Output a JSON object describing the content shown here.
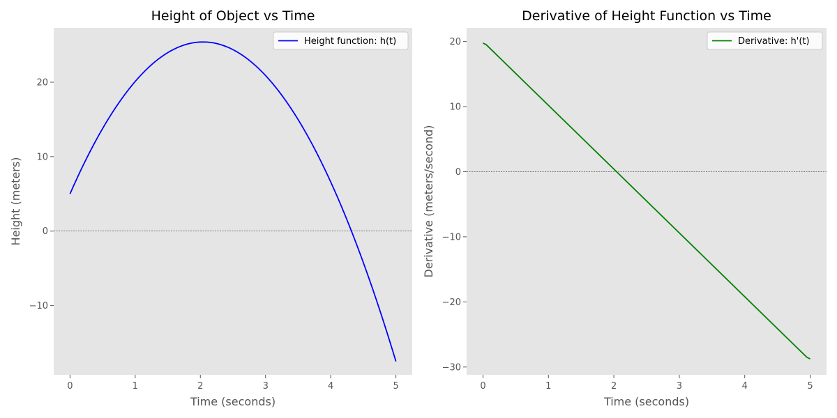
{
  "chart_data": [
    {
      "type": "line",
      "title": "Height of Object vs Time",
      "xlabel": "Time (seconds)",
      "ylabel": "Height (meters)",
      "xlim": [
        -0.25,
        5.25
      ],
      "ylim": [
        -19.3,
        27.3
      ],
      "xticks": [
        0,
        1,
        2,
        3,
        4,
        5
      ],
      "yticks": [
        -10,
        0,
        10,
        20
      ],
      "grid": false,
      "legend_position": "top-right",
      "reference_line_y": 0,
      "series": [
        {
          "name": "Height function: h(t)",
          "color": "#0000ff",
          "function": {
            "kind": "quadratic",
            "a": -4.9,
            "b": 20,
            "c": 5
          },
          "x_start": 0,
          "x_end": 5,
          "samples": 101
        }
      ]
    },
    {
      "type": "line",
      "title": "Derivative of Height Function vs Time",
      "xlabel": "Time (seconds)",
      "ylabel": "Derivative (meters/second)",
      "xlim": [
        -0.25,
        5.25
      ],
      "ylim": [
        -31.2,
        22.1
      ],
      "xticks": [
        0,
        1,
        2,
        3,
        4,
        5
      ],
      "yticks": [
        -30,
        -20,
        -10,
        0,
        10,
        20
      ],
      "grid": false,
      "legend_position": "top-right",
      "reference_line_y": 0,
      "series": [
        {
          "name": "Derivative: h'(t)",
          "color": "#008000",
          "points": [
            [
              0,
              19.76
            ],
            [
              0.05,
              19.51
            ],
            [
              4.95,
              -28.51
            ],
            [
              5,
              -28.76
            ]
          ]
        }
      ]
    }
  ]
}
